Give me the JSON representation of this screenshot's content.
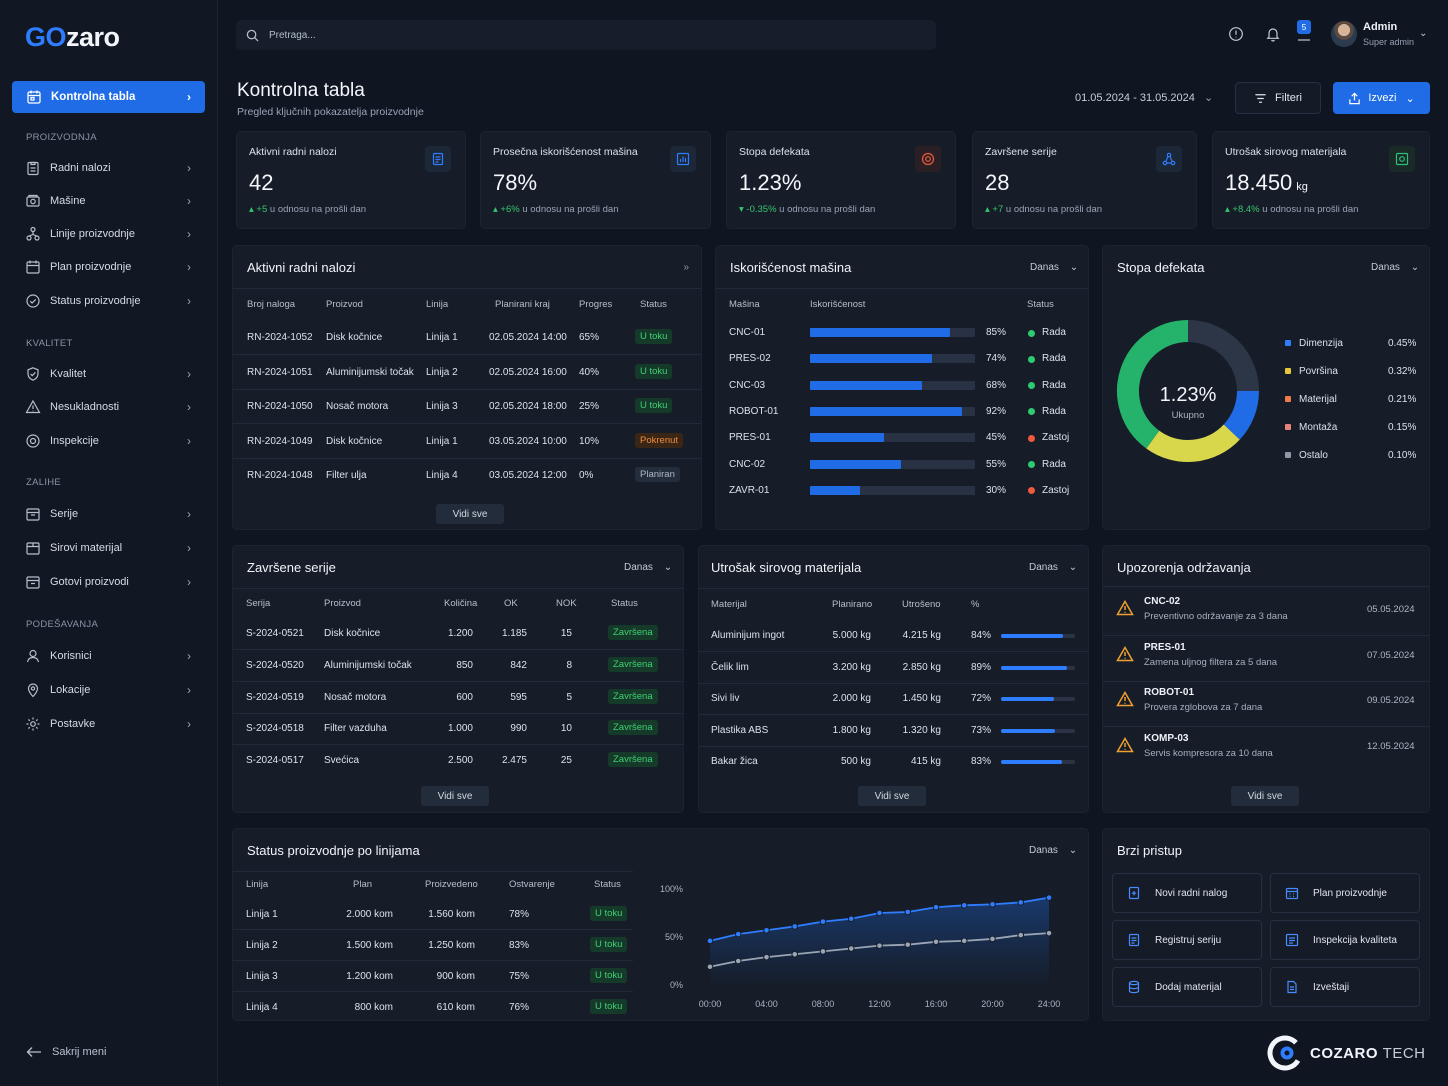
{
  "logo": {
    "part1": "GO",
    "part2": "zaro"
  },
  "sidebar": {
    "active": "Kontrolna tabla",
    "sections": [
      {
        "title": "PROIZVODNJA",
        "items": [
          "Radni nalozi",
          "Mašine",
          "Linije proizvodnje",
          "Plan proizvodnje",
          "Status proizvodnje"
        ]
      },
      {
        "title": "KVALITET",
        "items": [
          "Kvalitet",
          "Nesukladnosti",
          "Inspekcije"
        ]
      },
      {
        "title": "ZALIHE",
        "items": [
          "Serije",
          "Sirovi materijal",
          "Gotovi proizvodi"
        ]
      },
      {
        "title": "PODEŠAVANJA",
        "items": [
          "Korisnici",
          "Lokacije",
          "Postavke"
        ]
      }
    ],
    "hide_menu": "Sakrij meni"
  },
  "header": {
    "search_placeholder": "Pretraga...",
    "notification_count": "5",
    "user_name": "Admin",
    "user_role": "Super admin"
  },
  "page": {
    "title": "Kontrolna tabla",
    "subtitle": "Pregled ključnih pokazatelja proizvodnje",
    "date_range": "01.05.2024 - 31.05.2024",
    "filter_label": "Filteri",
    "export_label": "Izvezi"
  },
  "kpis": [
    {
      "title": "Aktivni radni nalozi",
      "value": "42",
      "unit": "",
      "delta": "+5",
      "delta_text": "u odnosu na prošli dan"
    },
    {
      "title": "Prosečna iskorišćenost mašina",
      "value": "78%",
      "unit": "",
      "delta": "+6%",
      "delta_text": "u odnosu na prošli dan"
    },
    {
      "title": "Stopa defekata",
      "value": "1.23%",
      "unit": "",
      "delta": "-0.35%",
      "delta_text": "u odnosu na prošli dan"
    },
    {
      "title": "Završene serije",
      "value": "28",
      "unit": "",
      "delta": "+7",
      "delta_text": "u odnosu na prošli dan"
    },
    {
      "title": "Utrošak sirovog materijala",
      "value": "18.450",
      "unit": "kg",
      "delta": "+8.4%",
      "delta_text": "u odnosu na prošli dan"
    }
  ],
  "work_orders": {
    "title": "Aktivni radni nalozi",
    "headers": [
      "Broj naloga",
      "Proizvod",
      "Linija",
      "Planirani kraj",
      "Progres",
      "Status"
    ],
    "rows": [
      [
        "RN-2024-1052",
        "Disk kočnice",
        "Linija 1",
        "02.05.2024 14:00",
        "65%",
        "U toku"
      ],
      [
        "RN-2024-1051",
        "Aluminijumski točak",
        "Linija 2",
        "02.05.2024 16:00",
        "40%",
        "U toku"
      ],
      [
        "RN-2024-1050",
        "Nosač motora",
        "Linija 3",
        "02.05.2024 18:00",
        "25%",
        "U toku"
      ],
      [
        "RN-2024-1049",
        "Disk kočnice",
        "Linija 1",
        "03.05.2024 10:00",
        "10%",
        "Pokrenut"
      ],
      [
        "RN-2024-1048",
        "Filter ulja",
        "Linija 4",
        "03.05.2024 12:00",
        "0%",
        "Planiran"
      ]
    ],
    "more": "Vidi sve"
  },
  "machines": {
    "title": "Iskorišćenost mašina",
    "period": "Danas",
    "headers": [
      "Mašina",
      "Iskorišćenost",
      "Status"
    ],
    "rows": [
      {
        "name": "CNC-01",
        "value": 85,
        "label": "85%",
        "status": "Rada",
        "color": "#2ecc71"
      },
      {
        "name": "PRES-02",
        "value": 74,
        "label": "74%",
        "status": "Rada",
        "color": "#2ecc71"
      },
      {
        "name": "CNC-03",
        "value": 68,
        "label": "68%",
        "status": "Rada",
        "color": "#2ecc71"
      },
      {
        "name": "ROBOT-01",
        "value": 92,
        "label": "92%",
        "status": "Rada",
        "color": "#2ecc71"
      },
      {
        "name": "PRES-01",
        "value": 45,
        "label": "45%",
        "status": "Zastoj",
        "color": "#ef5a3c"
      },
      {
        "name": "CNC-02",
        "value": 55,
        "label": "55%",
        "status": "Rada",
        "color": "#2ecc71"
      },
      {
        "name": "ZAVR-01",
        "value": 30,
        "label": "30%",
        "status": "Zastoj",
        "color": "#ef5a3c"
      }
    ]
  },
  "defects": {
    "title": "Stopa defekata",
    "period": "Danas",
    "center_value": "1.23%",
    "center_label": "Ukupno",
    "chart_data": {
      "type": "pie",
      "categories": [
        "Dimenzija",
        "Površina",
        "Materijal",
        "Montaža",
        "Ostalo"
      ],
      "values": [
        0.45,
        0.32,
        0.21,
        0.15,
        0.1
      ],
      "labels": [
        "0.45%",
        "0.32%",
        "0.21%",
        "0.15%",
        "0.10%"
      ],
      "legend_colors": [
        "#2f7dff",
        "#e8c53a",
        "#f07a4a",
        "#e7837a",
        "#8f98a6"
      ],
      "ring_colors": [
        "#2c3646",
        "#1f6ce6",
        "#d8d64a",
        "#25b26a"
      ],
      "ring_values": [
        0.25,
        0.12,
        0.23,
        0.4
      ]
    }
  },
  "batches": {
    "title": "Završene serije",
    "period": "Danas",
    "headers": [
      "Serija",
      "Proizvod",
      "Količina",
      "OK",
      "NOK",
      "Status"
    ],
    "rows": [
      [
        "S-2024-0521",
        "Disk kočnice",
        "1.200",
        "1.185",
        "15",
        "Završena"
      ],
      [
        "S-2024-0520",
        "Aluminijumski točak",
        "850",
        "842",
        "8",
        "Završena"
      ],
      [
        "S-2024-0519",
        "Nosač motora",
        "600",
        "595",
        "5",
        "Završena"
      ],
      [
        "S-2024-0518",
        "Filter vazduha",
        "1.000",
        "990",
        "10",
        "Završena"
      ],
      [
        "S-2024-0517",
        "Svećica",
        "2.500",
        "2.475",
        "25",
        "Završena"
      ]
    ],
    "more": "Vidi sve"
  },
  "materials": {
    "title": "Utrošak sirovog materijala",
    "period": "Danas",
    "headers": [
      "Materijal",
      "Planirano",
      "Utrošeno",
      "%"
    ],
    "rows": [
      {
        "name": "Aluminijum ingot",
        "plan": "5.000 kg",
        "used": "4.215 kg",
        "pct": "84%",
        "value": 84
      },
      {
        "name": "Čelik lim",
        "plan": "3.200 kg",
        "used": "2.850 kg",
        "pct": "89%",
        "value": 89
      },
      {
        "name": "Sivi liv",
        "plan": "2.000 kg",
        "used": "1.450 kg",
        "pct": "72%",
        "value": 72
      },
      {
        "name": "Plastika ABS",
        "plan": "1.800 kg",
        "used": "1.320 kg",
        "pct": "73%",
        "value": 73
      },
      {
        "name": "Bakar žica",
        "plan": "500 kg",
        "used": "415 kg",
        "pct": "83%",
        "value": 83
      }
    ],
    "more": "Vidi sve"
  },
  "maintenance": {
    "title": "Upozorenja održavanja",
    "items": [
      {
        "machine": "CNC-02",
        "desc": "Preventivno održavanje za 3 dana",
        "date": "05.05.2024"
      },
      {
        "machine": "PRES-01",
        "desc": "Zamena uljnog filtera za 5 dana",
        "date": "07.05.2024"
      },
      {
        "machine": "ROBOT-01",
        "desc": "Provera zglobova za 7 dana",
        "date": "09.05.2024"
      },
      {
        "machine": "KOMP-03",
        "desc": "Servis kompresora za 10 dana",
        "date": "12.05.2024"
      }
    ],
    "more": "Vidi sve"
  },
  "lines": {
    "title": "Status proizvodnje po linijama",
    "period": "Danas",
    "headers": [
      "Linija",
      "Plan",
      "Proizvedeno",
      "Ostvarenje",
      "Status"
    ],
    "rows": [
      [
        "Linija 1",
        "2.000 kom",
        "1.560 kom",
        "78%",
        "U toku"
      ],
      [
        "Linija 2",
        "1.500 kom",
        "1.250 kom",
        "83%",
        "U toku"
      ],
      [
        "Linija 3",
        "1.200 kom",
        "900 kom",
        "75%",
        "U toku"
      ],
      [
        "Linija 4",
        "800 kom",
        "610 kom",
        "76%",
        "U toku"
      ]
    ],
    "chart_data": {
      "type": "line",
      "x": [
        "00:00",
        "02:00",
        "04:00",
        "06:00",
        "08:00",
        "10:00",
        "12:00",
        "14:00",
        "16:00",
        "18:00",
        "20:00",
        "22:00",
        "24:00"
      ],
      "x_tick_labels": [
        "00:00",
        "04:00",
        "08:00",
        "12:00",
        "16:00",
        "20:00",
        "24:00"
      ],
      "y_tick_labels": [
        "100%",
        "50%",
        "0%"
      ],
      "ylim": [
        0,
        100
      ],
      "series": [
        {
          "values": [
            46,
            53,
            57,
            61,
            66,
            69,
            75,
            76,
            81,
            83,
            84,
            86,
            91
          ],
          "color": "#2f7dff"
        },
        {
          "values": [
            19,
            25,
            29,
            32,
            35,
            38,
            41,
            42,
            45,
            46,
            48,
            52,
            54
          ],
          "color": "#9aa4b4"
        }
      ]
    }
  },
  "quick_access": {
    "title": "Brzi pristup",
    "items": [
      "Novi radni nalog",
      "Plan proizvodnje",
      "Registruj seriju",
      "Inspekcija kvaliteta",
      "Dodaj materijal",
      "Izveštaji"
    ]
  },
  "brand": {
    "name": "COZARO",
    "suffix": "TECH"
  }
}
